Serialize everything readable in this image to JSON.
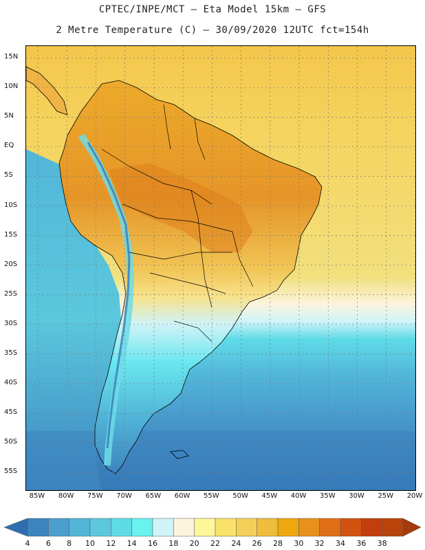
{
  "header": {
    "line1": "CPTEC/INPE/MCT —  Eta Model 15km — GFS",
    "line2": "2 Metre Temperature (C) — 30/09/2020 12UTC fct=154h"
  },
  "map": {
    "region": "South America",
    "lat_range": [
      -58,
      17
    ],
    "lon_range": [
      -87,
      -20
    ],
    "lat_labels": [
      "15N",
      "10N",
      "5N",
      "EQ",
      "5S",
      "10S",
      "15S",
      "20S",
      "25S",
      "30S",
      "35S",
      "40S",
      "45S",
      "50S",
      "55S"
    ],
    "lat_values": [
      15,
      10,
      5,
      0,
      -5,
      -10,
      -15,
      -20,
      -25,
      -30,
      -35,
      -40,
      -45,
      -50,
      -55
    ],
    "lon_labels": [
      "85W",
      "80W",
      "75W",
      "70W",
      "65W",
      "60W",
      "55W",
      "50W",
      "45W",
      "40W",
      "35W",
      "30W",
      "25W",
      "20W"
    ],
    "lon_values": [
      -85,
      -80,
      -75,
      -70,
      -65,
      -60,
      -55,
      -50,
      -45,
      -40,
      -35,
      -30,
      -25,
      -20
    ]
  },
  "colorbar": {
    "unit": "C",
    "levels": [
      "4",
      "6",
      "8",
      "10",
      "12",
      "14",
      "16",
      "18",
      "20",
      "22",
      "24",
      "26",
      "28",
      "30",
      "32",
      "34",
      "36",
      "38"
    ],
    "colors": [
      "#2f6fb0",
      "#3c84bf",
      "#4a9fcf",
      "#52b6d8",
      "#5bc8dd",
      "#5fdbe8",
      "#68f2f0",
      "#cff3f8",
      "#fdf4dc",
      "#fdf79a",
      "#f8e26a",
      "#f4d05a",
      "#efbd3c",
      "#eda810",
      "#e8901a",
      "#e07018",
      "#d2520f",
      "#c23e0c",
      "#b8440c",
      "#a63a0a"
    ]
  }
}
